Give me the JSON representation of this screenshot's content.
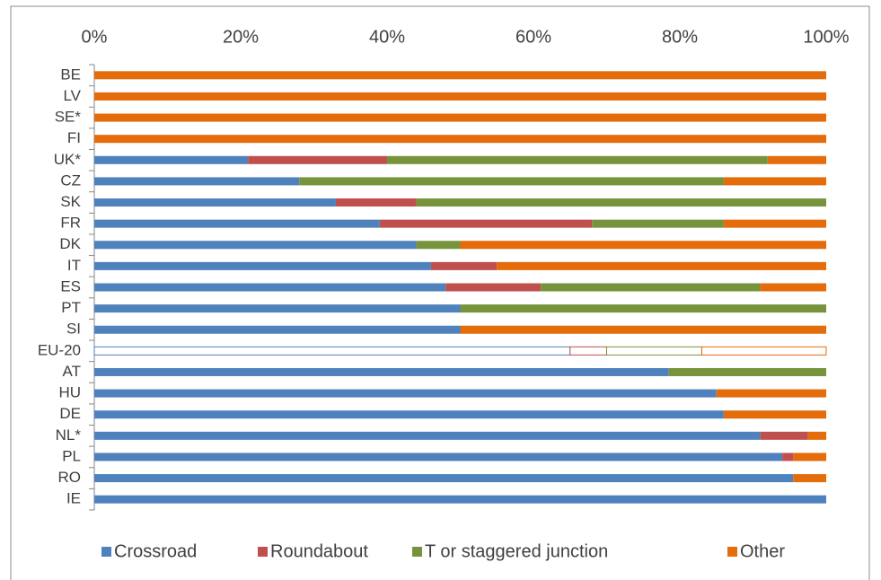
{
  "chart_data": {
    "type": "stacked-bar-horizontal",
    "categories": [
      "BE",
      "LV",
      "SE*",
      "FI",
      "UK*",
      "CZ",
      "SK",
      "FR",
      "DK",
      "IT",
      "ES",
      "PT",
      "SI",
      "EU-20",
      "AT",
      "HU",
      "DE",
      "NL*",
      "PL",
      "RO",
      "IE"
    ],
    "series": [
      {
        "name": "Crossroad",
        "color": "#4f81bd",
        "values": [
          0,
          0,
          0,
          0,
          21,
          28,
          33,
          39,
          44,
          46,
          48,
          50,
          50,
          65,
          78.5,
          85,
          86,
          91,
          94,
          95.5,
          100
        ]
      },
      {
        "name": "Roundabout",
        "color": "#c0504d",
        "values": [
          0,
          0,
          0,
          0,
          19,
          0,
          11,
          29,
          0,
          9,
          13,
          0,
          0,
          5,
          0,
          0,
          0,
          6.5,
          1.5,
          0,
          0
        ]
      },
      {
        "name": "T or staggered junction",
        "color": "#77933c",
        "values": [
          0,
          0,
          0,
          0,
          52,
          58,
          56,
          18,
          6,
          0,
          30,
          50,
          0,
          13,
          21.5,
          0,
          0,
          0,
          0,
          0,
          0
        ]
      },
      {
        "name": "Other",
        "color": "#e46c0a",
        "values": [
          100,
          100,
          100,
          100,
          8,
          14,
          0,
          14,
          50,
          45,
          9,
          0,
          50,
          17,
          0,
          15,
          14,
          2.5,
          4.5,
          4.5,
          0
        ]
      }
    ],
    "outline_only": [
      13
    ],
    "xlim": [
      0,
      100
    ],
    "xticks": [
      {
        "value": 0,
        "label": "0%"
      },
      {
        "value": 20,
        "label": "20%"
      },
      {
        "value": 40,
        "label": "40%"
      },
      {
        "value": 60,
        "label": "60%"
      },
      {
        "value": 80,
        "label": "80%"
      },
      {
        "value": 100,
        "label": "100%"
      }
    ],
    "legend": "bottom"
  }
}
